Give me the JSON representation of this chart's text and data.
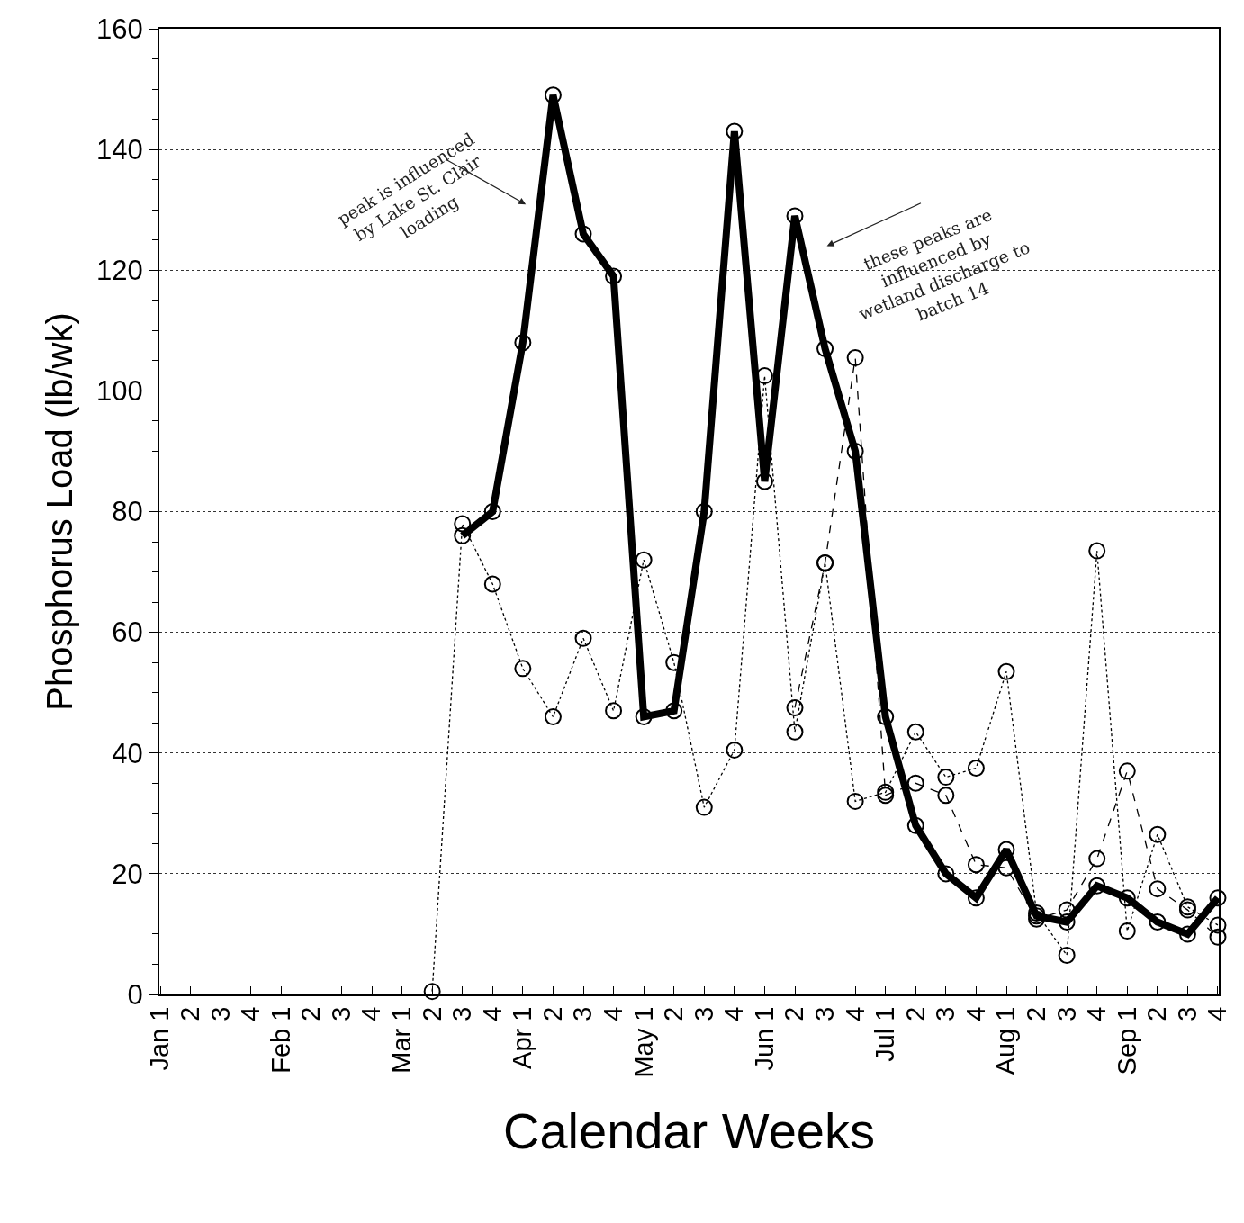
{
  "chart_data": {
    "type": "line",
    "xlabel": "Calendar Weeks",
    "ylabel": "Phosphorus Load (lb/wk)",
    "categories": [
      "Jan 1",
      "2",
      "3",
      "4",
      "Feb 1",
      "2",
      "3",
      "4",
      "Mar 1",
      "2",
      "3",
      "4",
      "Apr 1",
      "2",
      "3",
      "4",
      "May 1",
      "2",
      "3",
      "4",
      "Jun 1",
      "2",
      "3",
      "4",
      "Jul 1",
      "2",
      "3",
      "4",
      "Aug 1",
      "2",
      "3",
      "4",
      "Sep 1",
      "2",
      "3",
      "4"
    ],
    "series": [
      {
        "color": "#000000",
        "line_style": "solid",
        "values": [
          null,
          null,
          null,
          null,
          null,
          null,
          null,
          null,
          null,
          null,
          76,
          80,
          108,
          149,
          126,
          119,
          46,
          47,
          80,
          143,
          85,
          129,
          107,
          90,
          46,
          28,
          20,
          16,
          24,
          13,
          12,
          18,
          16,
          12,
          10,
          16
        ]
      },
      {
        "color": "#000000",
        "line_style": "dotted",
        "values": [
          null,
          null,
          null,
          null,
          null,
          null,
          null,
          null,
          null,
          0.5,
          78,
          68,
          54,
          46,
          59,
          47,
          72,
          55,
          31,
          40.5,
          102.5,
          43.5,
          71.5,
          32,
          33.5,
          43.5,
          36,
          37.5,
          53.5,
          13.5,
          6.5,
          73.5,
          10.5,
          26.5,
          14.5,
          11.5
        ]
      },
      {
        "color": "#000000",
        "line_style": "dashed",
        "values": [
          null,
          null,
          null,
          null,
          null,
          null,
          null,
          null,
          null,
          null,
          null,
          null,
          null,
          null,
          null,
          null,
          null,
          null,
          null,
          null,
          null,
          47.5,
          71.5,
          105.5,
          33,
          35,
          33,
          21.5,
          21,
          12.5,
          14,
          22.5,
          37,
          17.5,
          14,
          9.5
        ]
      }
    ],
    "ylim": [
      0,
      160
    ],
    "yticks": [
      0,
      20,
      40,
      60,
      80,
      100,
      120,
      140,
      160
    ],
    "grid": "y",
    "marker": "circle",
    "annotations": [
      "peak is influenced by Lake St. Clair loading",
      "these peaks are influenced by wetland discharge to batch 14"
    ]
  }
}
